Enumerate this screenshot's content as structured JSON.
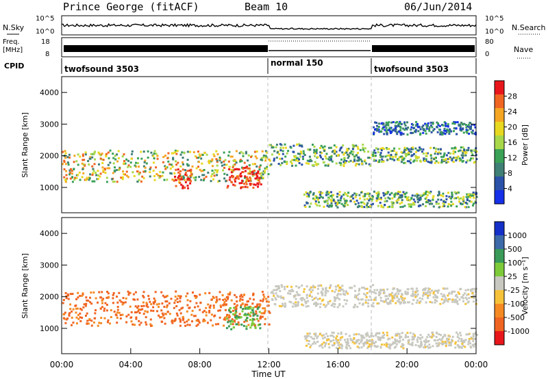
{
  "header": {
    "station": "Prince George (fitACF)",
    "beam": "Beam 10",
    "date": "06/Jun/2014"
  },
  "noise_panel": {
    "left_label": "N.Sky",
    "right_label": "N.Search",
    "left_ticks": [
      "10^5",
      "10^0"
    ],
    "right_ticks": [
      "10^5",
      "10^0"
    ]
  },
  "freq_panel": {
    "left_label_1": "Freq.",
    "left_label_2": "[MHz]",
    "right_label": "Nave",
    "left_ticks": [
      "18",
      "8"
    ],
    "right_ticks": [
      "80",
      "0"
    ]
  },
  "cpid": {
    "label": "CPID",
    "segments": [
      {
        "name": "twofsound 3503",
        "start_hour": 0,
        "end_hour": 12
      },
      {
        "name": "normal 150",
        "start_hour": 12,
        "end_hour": 18
      },
      {
        "name": "twofsound 3503",
        "start_hour": 18,
        "end_hour": 24
      }
    ]
  },
  "chart_data": [
    {
      "type": "heatmap",
      "name": "power",
      "ylabel": "Slant Range [km]",
      "yticks": [
        "1000",
        "2000",
        "3000",
        "4000"
      ],
      "ylim": [
        200,
        4500
      ],
      "xlim": [
        0,
        24
      ],
      "colorbar": {
        "label": "Power [dB]",
        "ticks": [
          "28",
          "24",
          "20",
          "16",
          "12",
          "8",
          "4"
        ],
        "colors": [
          "#e8161b",
          "#f06522",
          "#f5a623",
          "#e8d81f",
          "#a8d84a",
          "#3aa157",
          "#3f7f75",
          "#2b52a8",
          "#1530e8"
        ]
      },
      "echo_bands": [
        {
          "start_hour": 0.0,
          "end_hour": 12.0,
          "range_low": 1200,
          "range_high": 2200,
          "level": "high"
        },
        {
          "start_hour": 6.5,
          "end_hour": 7.5,
          "range_low": 1000,
          "range_high": 1600,
          "level": "peak"
        },
        {
          "start_hour": 9.5,
          "end_hour": 11.5,
          "range_low": 1000,
          "range_high": 1700,
          "level": "peak"
        },
        {
          "start_hour": 12.0,
          "end_hour": 18.0,
          "range_low": 1700,
          "range_high": 2400,
          "level": "medium"
        },
        {
          "start_hour": 14.0,
          "end_hour": 24.0,
          "range_low": 400,
          "range_high": 900,
          "level": "medium"
        },
        {
          "start_hour": 18.0,
          "end_hour": 24.0,
          "range_low": 1800,
          "range_high": 2300,
          "level": "medium"
        },
        {
          "start_hour": 18.0,
          "end_hour": 24.0,
          "range_low": 2700,
          "range_high": 3100,
          "level": "low"
        }
      ]
    },
    {
      "type": "heatmap",
      "name": "velocity",
      "ylabel": "Slant Range [km]",
      "yticks": [
        "1000",
        "2000",
        "3000",
        "4000"
      ],
      "ylim": [
        200,
        4500
      ],
      "xlim": [
        0,
        24
      ],
      "xlabel": "Time UT",
      "xticks": [
        "00:00",
        "04:00",
        "08:00",
        "12:00",
        "16:00",
        "20:00",
        "00:00"
      ],
      "colorbar": {
        "label": "Velocity [m s⁻¹]",
        "ticks": [
          "1000",
          "500",
          "100",
          "25",
          "-25",
          "-100",
          "-500",
          "-1000"
        ],
        "colors": [
          "#1530c8",
          "#3d6aa8",
          "#3a9a58",
          "#7ecb3a",
          "#c8c8c0",
          "#f5c23a",
          "#f58a23",
          "#f06422",
          "#e8161b"
        ]
      },
      "echo_bands": [
        {
          "start_hour": 0.0,
          "end_hour": 12.0,
          "range_low": 1100,
          "range_high": 2200,
          "level": "-100"
        },
        {
          "start_hour": 9.5,
          "end_hour": 11.5,
          "range_low": 1000,
          "range_high": 1700,
          "level": "100"
        },
        {
          "start_hour": 12.0,
          "end_hour": 18.0,
          "range_low": 1700,
          "range_high": 2400,
          "level": "25"
        },
        {
          "start_hour": 14.0,
          "end_hour": 24.0,
          "range_low": 400,
          "range_high": 900,
          "level": "25"
        },
        {
          "start_hour": 18.0,
          "end_hour": 24.0,
          "range_low": 1800,
          "range_high": 2300,
          "level": "25"
        }
      ]
    }
  ]
}
